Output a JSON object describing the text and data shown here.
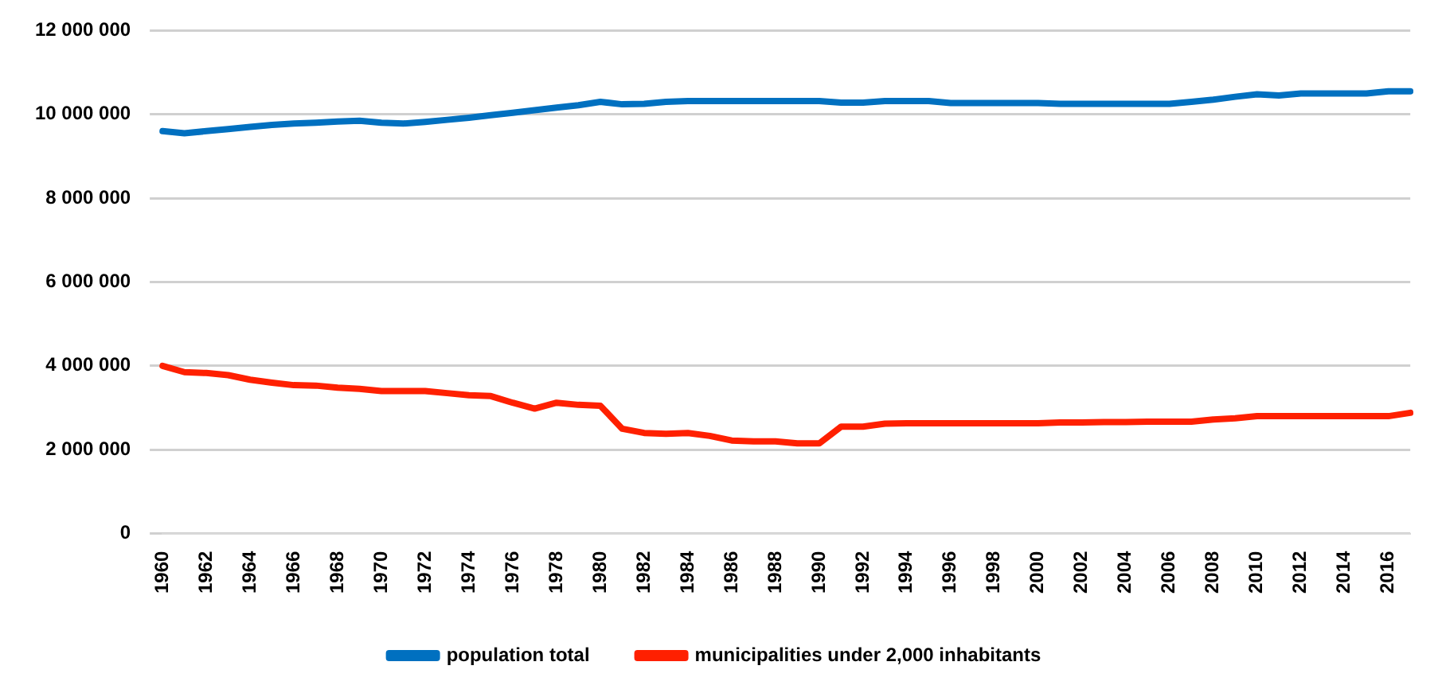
{
  "chart_data": {
    "type": "line",
    "categories": [
      "1960",
      null,
      "1962",
      null,
      "1964",
      null,
      "1966",
      null,
      "1968",
      null,
      "1970",
      null,
      "1972",
      null,
      "1974",
      null,
      "1976",
      null,
      "1978",
      null,
      "1980",
      null,
      "1982",
      null,
      "1984",
      null,
      "1986",
      null,
      "1988",
      null,
      "1990",
      null,
      "1992",
      null,
      "1994",
      null,
      "1996",
      null,
      "1998",
      null,
      "2000",
      null,
      "2002",
      null,
      "2004",
      null,
      "2006",
      null,
      "2008",
      null,
      "2010",
      null,
      "2012",
      null,
      "2014",
      null,
      "2016",
      null
    ],
    "series": [
      {
        "name": "population total",
        "color": "#0070c0",
        "values": [
          9600000,
          9550000,
          9600000,
          9650000,
          9700000,
          9750000,
          9780000,
          9800000,
          9830000,
          9850000,
          9800000,
          9780000,
          9820000,
          9870000,
          9920000,
          9980000,
          10040000,
          10100000,
          10160000,
          10220000,
          10300000,
          10240000,
          10250000,
          10300000,
          10320000,
          10320000,
          10320000,
          10320000,
          10320000,
          10320000,
          10320000,
          10280000,
          10280000,
          10320000,
          10320000,
          10320000,
          10270000,
          10270000,
          10270000,
          10270000,
          10270000,
          10250000,
          10250000,
          10250000,
          10250000,
          10250000,
          10250000,
          10300000,
          10350000,
          10420000,
          10480000,
          10450000,
          10500000,
          10500000,
          10500000,
          10500000,
          10550000,
          10550000
        ]
      },
      {
        "name": "municipalities under 2,000 inhabitants",
        "color": "#ff2000",
        "values": [
          4000000,
          3850000,
          3830000,
          3780000,
          3670000,
          3600000,
          3540000,
          3530000,
          3480000,
          3450000,
          3400000,
          3400000,
          3400000,
          3350000,
          3300000,
          3280000,
          3120000,
          2980000,
          3120000,
          3070000,
          3050000,
          2500000,
          2400000,
          2380000,
          2400000,
          2330000,
          2220000,
          2200000,
          2200000,
          2150000,
          2150000,
          2550000,
          2550000,
          2620000,
          2630000,
          2630000,
          2630000,
          2630000,
          2630000,
          2630000,
          2630000,
          2650000,
          2650000,
          2660000,
          2660000,
          2670000,
          2670000,
          2670000,
          2720000,
          2750000,
          2800000,
          2800000,
          2800000,
          2800000,
          2800000,
          2800000,
          2800000,
          2880000
        ]
      }
    ],
    "ylim": [
      0,
      12000000
    ],
    "yticks": [
      {
        "value": 0,
        "label": "0"
      },
      {
        "value": 2000000,
        "label": "2 000 000"
      },
      {
        "value": 4000000,
        "label": "4 000 000"
      },
      {
        "value": 6000000,
        "label": "6 000 000"
      },
      {
        "value": 8000000,
        "label": "8 000 000"
      },
      {
        "value": 10000000,
        "label": "10 000 000"
      },
      {
        "value": 12000000,
        "label": "12 000 000"
      }
    ],
    "grid": "y",
    "legend": "bottom",
    "marker": "none",
    "line_style": "solid"
  }
}
